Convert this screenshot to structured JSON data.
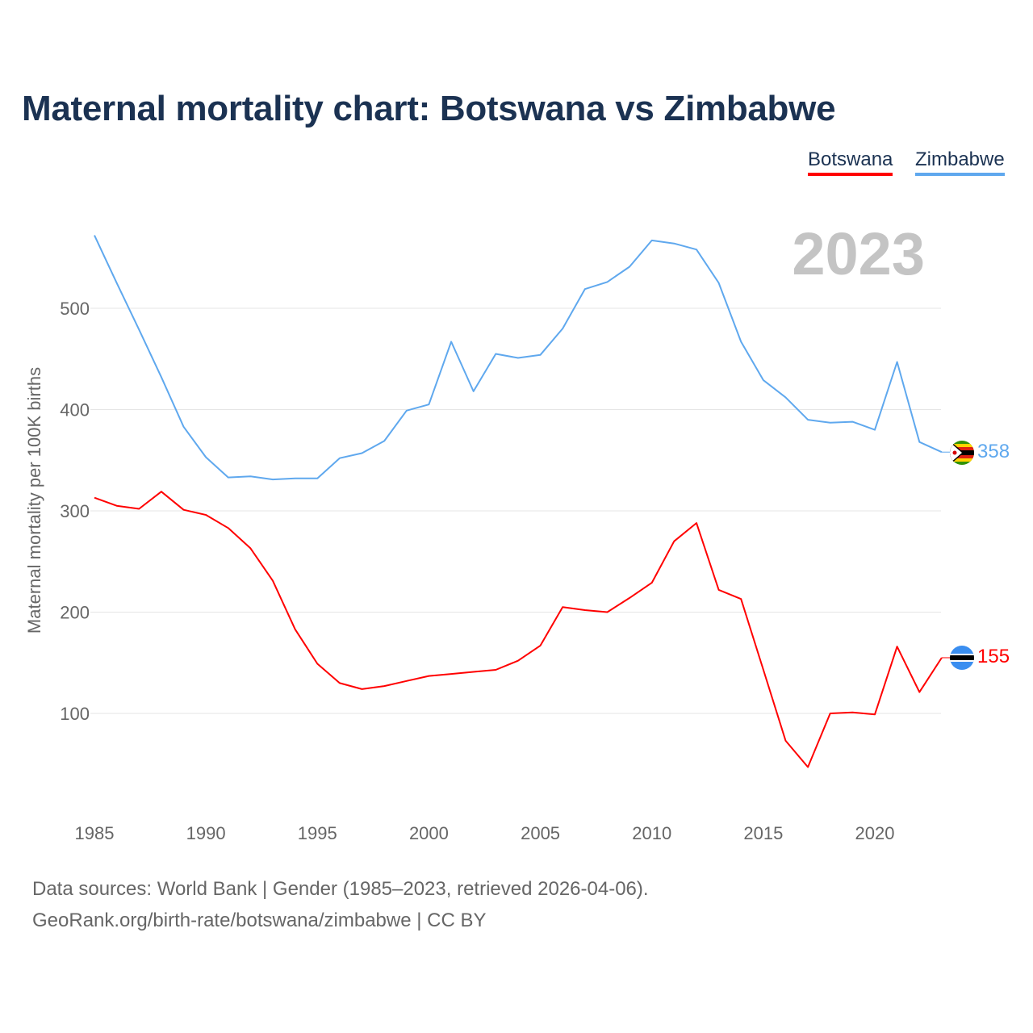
{
  "chart_data": {
    "type": "line",
    "title": "Maternal mortality chart: Botswana vs Zimbabwe",
    "ylabel": "Maternal mortality per 100K births",
    "xlabel": "",
    "year_label": "2023",
    "ylim": [
      0,
      580
    ],
    "xlim": [
      1985,
      2023
    ],
    "yticks": [
      100,
      200,
      300,
      400,
      500
    ],
    "xticks": [
      1985,
      1990,
      1995,
      2000,
      2005,
      2010,
      2015,
      2020
    ],
    "grid": true,
    "legend_placement": "top-right",
    "x": [
      1985,
      1986,
      1987,
      1988,
      1989,
      1990,
      1991,
      1992,
      1993,
      1994,
      1995,
      1996,
      1997,
      1998,
      1999,
      2000,
      2001,
      2002,
      2003,
      2004,
      2005,
      2006,
      2007,
      2008,
      2009,
      2010,
      2011,
      2012,
      2013,
      2014,
      2015,
      2016,
      2017,
      2018,
      2019,
      2020,
      2021,
      2022,
      2023
    ],
    "series": [
      {
        "name": "Botswana",
        "color": "#ff0000",
        "end_label": "155",
        "values": [
          313,
          305,
          302,
          319,
          301,
          296,
          283,
          263,
          231,
          183,
          149,
          130,
          124,
          127,
          132,
          137,
          139,
          141,
          143,
          152,
          167,
          205,
          202,
          200,
          214,
          229,
          270,
          288,
          222,
          213,
          143,
          73,
          47,
          100,
          101,
          99,
          166,
          121,
          155
        ]
      },
      {
        "name": "Zimbabwe",
        "color": "#5fa8ee",
        "end_label": "358",
        "values": [
          572,
          525,
          479,
          432,
          383,
          353,
          333,
          334,
          331,
          332,
          332,
          352,
          357,
          369,
          399,
          405,
          467,
          418,
          455,
          451,
          454,
          480,
          519,
          526,
          541,
          567,
          564,
          558,
          525,
          467,
          429,
          412,
          390,
          387,
          388,
          380,
          447,
          368,
          358
        ]
      }
    ]
  },
  "footer": {
    "line1": "Data sources: World Bank | Gender (1985–2023, retrieved 2026-04-06).",
    "line2": "GeoRank.org/birth-rate/botswana/zimbabwe | CC BY"
  }
}
